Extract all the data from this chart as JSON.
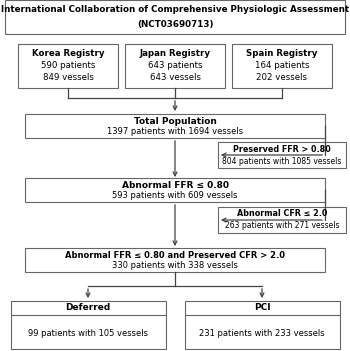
{
  "title_line1": "International Collaboration of Comprehensive Physiologic Assessment",
  "title_line2": "(NCT03690713)",
  "registries": [
    {
      "name": "Korea Registry",
      "line2": "590 patients",
      "line3": "849 vessels"
    },
    {
      "name": "Japan Registry",
      "line2": "643 patients",
      "line3": "643 vessels"
    },
    {
      "name": "Spain Registry",
      "line2": "164 patients",
      "line3": "202 vessels"
    }
  ],
  "total_bold": "Total Population",
  "total_sub": "1397 patients with 1694 vessels",
  "pffr_bold": "Preserved FFR > 0.80",
  "pffr_sub": "804 patients with 1085 vessels",
  "affr_bold": "Abnormal FFR ≤ 0.80",
  "affr_sub": "593 patients with 609 vessels",
  "acfr_bold": "Abnormal CFR ≤ 2.0",
  "acfr_sub": "263 patients with 271 vessels",
  "combo_bold": "Abnormal FFR ≤ 0.80 and Preserved CFR > 2.0",
  "combo_sub": "330 patients with 338 vessels",
  "def_bold": "Deferred",
  "def_sub": "99 patients with 105 vessels",
  "pci_bold": "PCI",
  "pci_sub": "231 patients with 233 vessels",
  "edge_color": "#666666",
  "arrow_color": "#444444",
  "line_color": "#444444",
  "fontsize_bold": 6.5,
  "fontsize_sub": 6.0,
  "fontsize_title": 6.3,
  "fontsize_reg": 6.2
}
